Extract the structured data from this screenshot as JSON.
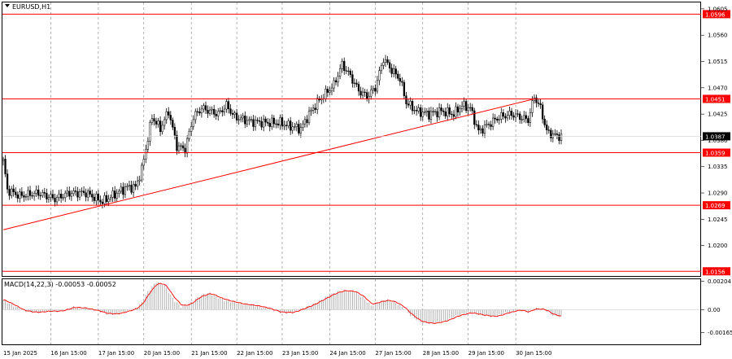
{
  "window": {
    "symbol_label": "EURUSD,H1"
  },
  "indicator": {
    "label": "MACD(14,22,3) -0.00053 -0.00052"
  },
  "colors": {
    "background": "#ffffff",
    "candle": "#000000",
    "level": "#ff0000",
    "trendline": "#ff0000",
    "macd_hist": "#a9a9a9",
    "macd_signal": "#ff0000",
    "grid": "#7f7f7f",
    "current_price_bg": "#000000"
  },
  "chart_data": [
    {
      "type": "candlestick",
      "title": "EURUSD,H1",
      "x_tick_labels": [
        "15 Jan 2025",
        "16 Jan 15:00",
        "17 Jan 15:00",
        "20 Jan 15:00",
        "21 Jan 15:00",
        "22 Jan 15:00",
        "23 Jan 15:00",
        "24 Jan 15:00",
        "27 Jan 15:00",
        "28 Jan 15:00",
        "29 Jan 15:00",
        "30 Jan 15:00"
      ],
      "y_tick_labels": [
        "1.0605",
        "1.0560",
        "1.0515",
        "1.0470",
        "1.0425",
        "1.0380",
        "1.0335",
        "1.0290",
        "1.0245",
        "1.0200"
      ],
      "ylim": [
        1.0148,
        1.0616
      ],
      "grid": true,
      "current_price": "1.0387",
      "price_anchors": [
        {
          "x": 0,
          "price": 1.0345
        },
        {
          "x": 2,
          "price": 1.0295
        },
        {
          "x": 8,
          "price": 1.0285
        },
        {
          "x": 17,
          "price": 1.029
        },
        {
          "x": 25,
          "price": 1.028
        },
        {
          "x": 32,
          "price": 1.029
        },
        {
          "x": 40,
          "price": 1.029
        },
        {
          "x": 48,
          "price": 1.0275
        },
        {
          "x": 55,
          "price": 1.029
        },
        {
          "x": 60,
          "price": 1.03
        },
        {
          "x": 64,
          "price": 1.03
        },
        {
          "x": 67,
          "price": 1.033
        },
        {
          "x": 72,
          "price": 1.042
        },
        {
          "x": 76,
          "price": 1.04
        },
        {
          "x": 80,
          "price": 1.043
        },
        {
          "x": 84,
          "price": 1.037
        },
        {
          "x": 88,
          "price": 1.0365
        },
        {
          "x": 92,
          "price": 1.042
        },
        {
          "x": 96,
          "price": 1.0435
        },
        {
          "x": 100,
          "price": 1.043
        },
        {
          "x": 104,
          "price": 1.0425
        },
        {
          "x": 108,
          "price": 1.044
        },
        {
          "x": 112,
          "price": 1.042
        },
        {
          "x": 120,
          "price": 1.0412
        },
        {
          "x": 128,
          "price": 1.041
        },
        {
          "x": 134,
          "price": 1.041
        },
        {
          "x": 138,
          "price": 1.0405
        },
        {
          "x": 144,
          "price": 1.04
        },
        {
          "x": 148,
          "price": 1.0425
        },
        {
          "x": 152,
          "price": 1.0445
        },
        {
          "x": 156,
          "price": 1.046
        },
        {
          "x": 160,
          "price": 1.0475
        },
        {
          "x": 164,
          "price": 1.051
        },
        {
          "x": 168,
          "price": 1.049
        },
        {
          "x": 172,
          "price": 1.0465
        },
        {
          "x": 176,
          "price": 1.0455
        },
        {
          "x": 180,
          "price": 1.047
        },
        {
          "x": 184,
          "price": 1.052
        },
        {
          "x": 188,
          "price": 1.05
        },
        {
          "x": 192,
          "price": 1.0485
        },
        {
          "x": 195,
          "price": 1.0445
        },
        {
          "x": 200,
          "price": 1.043
        },
        {
          "x": 206,
          "price": 1.0425
        },
        {
          "x": 212,
          "price": 1.043
        },
        {
          "x": 218,
          "price": 1.0425
        },
        {
          "x": 222,
          "price": 1.044
        },
        {
          "x": 226,
          "price": 1.0435
        },
        {
          "x": 230,
          "price": 1.0395
        },
        {
          "x": 236,
          "price": 1.041
        },
        {
          "x": 240,
          "price": 1.042
        },
        {
          "x": 246,
          "price": 1.0425
        },
        {
          "x": 250,
          "price": 1.042
        },
        {
          "x": 254,
          "price": 1.0415
        },
        {
          "x": 257,
          "price": 1.0455
        },
        {
          "x": 260,
          "price": 1.0435
        },
        {
          "x": 263,
          "price": 1.0395
        },
        {
          "x": 267,
          "price": 1.0388
        },
        {
          "x": 270,
          "price": 1.0387
        }
      ],
      "trendline": {
        "from": {
          "x": 0,
          "price": 1.0227
        },
        "to": {
          "x": 257,
          "price": 1.0451
        }
      },
      "levels": [
        {
          "label": "1.0596",
          "price": 1.0596
        },
        {
          "label": "1.0451",
          "price": 1.0451
        },
        {
          "label": "1.0359",
          "price": 1.0359
        },
        {
          "label": "1.0269",
          "price": 1.0269
        },
        {
          "label": "1.0156",
          "price": 1.0156
        }
      ]
    },
    {
      "type": "histogram+line",
      "title": "MACD(14,22,3) -0.00053 -0.00052",
      "y_tick_labels": [
        "0.00204",
        "0.00",
        "-0.00165"
      ],
      "ylim": [
        -0.0025,
        0.0022
      ],
      "hist_anchors": [
        {
          "x": 0,
          "value": 0.0007
        },
        {
          "x": 5,
          "value": 0.0003
        },
        {
          "x": 10,
          "value": -0.0001
        },
        {
          "x": 16,
          "value": -0.0002
        },
        {
          "x": 22,
          "value": -0.0001
        },
        {
          "x": 28,
          "value": -0.0001
        },
        {
          "x": 34,
          "value": 0.0002
        },
        {
          "x": 40,
          "value": 0.0001
        },
        {
          "x": 46,
          "value": -0.0001
        },
        {
          "x": 50,
          "value": -0.0003
        },
        {
          "x": 55,
          "value": -0.0003
        },
        {
          "x": 60,
          "value": -0.0001
        },
        {
          "x": 64,
          "value": 0.0001
        },
        {
          "x": 67,
          "value": 0.0005
        },
        {
          "x": 70,
          "value": 0.0013
        },
        {
          "x": 74,
          "value": 0.002
        },
        {
          "x": 78,
          "value": 0.0018
        },
        {
          "x": 82,
          "value": 0.0008
        },
        {
          "x": 86,
          "value": 0.0002
        },
        {
          "x": 90,
          "value": 0.0004
        },
        {
          "x": 95,
          "value": 0.001
        },
        {
          "x": 100,
          "value": 0.0012
        },
        {
          "x": 105,
          "value": 0.0008
        },
        {
          "x": 110,
          "value": 0.0006
        },
        {
          "x": 116,
          "value": 0.0004
        },
        {
          "x": 122,
          "value": 0.0003
        },
        {
          "x": 128,
          "value": 0.0001
        },
        {
          "x": 134,
          "value": -0.0002
        },
        {
          "x": 140,
          "value": -0.0002
        },
        {
          "x": 145,
          "value": 0.0001
        },
        {
          "x": 150,
          "value": 0.0004
        },
        {
          "x": 155,
          "value": 0.0008
        },
        {
          "x": 160,
          "value": 0.0012
        },
        {
          "x": 165,
          "value": 0.0014
        },
        {
          "x": 170,
          "value": 0.0013
        },
        {
          "x": 174,
          "value": 0.0009
        },
        {
          "x": 178,
          "value": 0.0003
        },
        {
          "x": 182,
          "value": 0.0006
        },
        {
          "x": 186,
          "value": 0.0007
        },
        {
          "x": 190,
          "value": 0.0005
        },
        {
          "x": 194,
          "value": 0.0001
        },
        {
          "x": 197,
          "value": -0.0004
        },
        {
          "x": 202,
          "value": -0.0009
        },
        {
          "x": 208,
          "value": -0.001
        },
        {
          "x": 214,
          "value": -0.0008
        },
        {
          "x": 220,
          "value": -0.0004
        },
        {
          "x": 226,
          "value": -0.0002
        },
        {
          "x": 232,
          "value": -0.0004
        },
        {
          "x": 238,
          "value": -0.0005
        },
        {
          "x": 244,
          "value": -0.0002
        },
        {
          "x": 250,
          "value": 0.0
        },
        {
          "x": 254,
          "value": -0.0002
        },
        {
          "x": 257,
          "value": 0.0001
        },
        {
          "x": 262,
          "value": 0.0
        },
        {
          "x": 266,
          "value": -0.0004
        },
        {
          "x": 270,
          "value": -0.0005
        }
      ]
    }
  ]
}
